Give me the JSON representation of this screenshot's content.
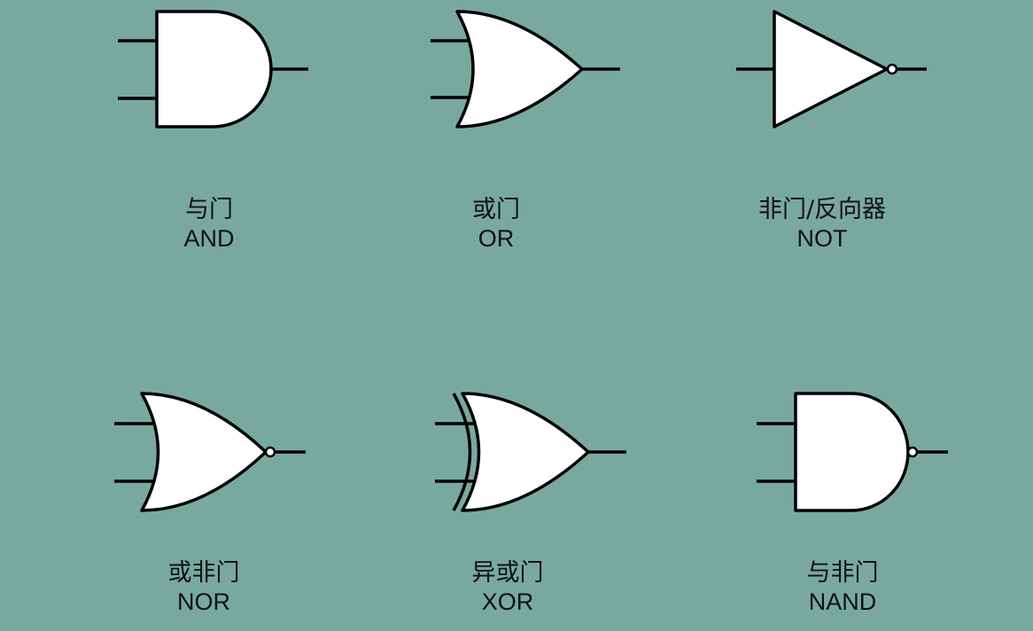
{
  "colors": {
    "background": "#79a99e",
    "gate_fill": "#ffffff",
    "stroke": "#000000"
  },
  "gates": [
    {
      "id": "and",
      "zh": "与门",
      "en": "AND",
      "icon": "and-gate-icon"
    },
    {
      "id": "or",
      "zh": "或门",
      "en": "OR",
      "icon": "or-gate-icon"
    },
    {
      "id": "not",
      "zh": "非门/反向器",
      "en": "NOT",
      "icon": "not-gate-icon"
    },
    {
      "id": "nor",
      "zh": "或非门",
      "en": "NOR",
      "icon": "nor-gate-icon"
    },
    {
      "id": "xor",
      "zh": "异或门",
      "en": "XOR",
      "icon": "xor-gate-icon"
    },
    {
      "id": "nand",
      "zh": "与非门",
      "en": "NAND",
      "icon": "nand-gate-icon"
    }
  ]
}
